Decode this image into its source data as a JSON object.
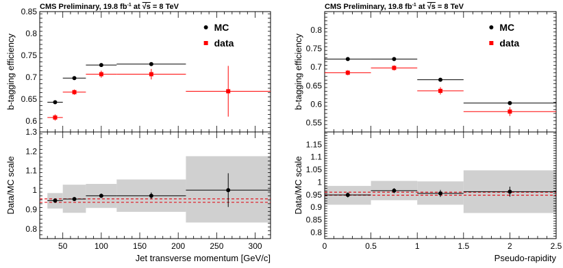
{
  "chart_data": [
    {
      "type": "scatter",
      "header": {
        "prefix": "CMS Preliminary, 19.8 fb",
        "sup": "-1",
        "mid": " at ",
        "sqrt": "√s",
        "suffix": " = 8 TeV"
      },
      "legend": [
        "MC",
        "data"
      ],
      "legend_placement": "top-right",
      "xlabel": "Jet transverse momentum [GeV/c]",
      "xlim": [
        20,
        320
      ],
      "xticks": [
        50,
        100,
        150,
        200,
        250,
        300
      ],
      "xtick_labels": [
        "50",
        "100",
        "150",
        "200",
        "250",
        "300"
      ],
      "top": {
        "ylabel": "b-tagging efficiency",
        "ylim": [
          0.575,
          0.85
        ],
        "yticks": [
          0.6,
          0.65,
          0.7,
          0.75,
          0.8,
          0.85
        ],
        "ytick_labels": [
          "0.6",
          "0.65",
          "0.7",
          "0.75",
          "0.8",
          "0.85"
        ],
        "series": [
          {
            "name": "MC",
            "color": "#000000",
            "marker": "circle",
            "points": [
              {
                "x": 40,
                "xlo": 30,
                "xhi": 50,
                "y": 0.643,
                "err": 0.002
              },
              {
                "x": 65,
                "xlo": 50,
                "xhi": 80,
                "y": 0.698,
                "err": 0.002
              },
              {
                "x": 100,
                "xlo": 80,
                "xhi": 120,
                "y": 0.728,
                "err": 0.002
              },
              {
                "x": 165,
                "xlo": 120,
                "xhi": 210,
                "y": 0.73,
                "err": 0.002
              },
              {
                "x": 265,
                "xlo": 210,
                "xhi": 320,
                "y": 0.668,
                "err": 0.003
              }
            ]
          },
          {
            "name": "data",
            "color": "#ff0000",
            "marker": "square",
            "points": [
              {
                "x": 40,
                "xlo": 30,
                "xhi": 50,
                "y": 0.608,
                "err": 0.007
              },
              {
                "x": 65,
                "xlo": 50,
                "xhi": 80,
                "y": 0.666,
                "err": 0.006
              },
              {
                "x": 100,
                "xlo": 80,
                "xhi": 120,
                "y": 0.707,
                "err": 0.008
              },
              {
                "x": 165,
                "xlo": 120,
                "xhi": 210,
                "y": 0.707,
                "err": 0.012
              },
              {
                "x": 265,
                "xlo": 210,
                "xhi": 320,
                "y": 0.668,
                "err": 0.058
              }
            ]
          }
        ]
      },
      "bottom": {
        "ylabel": "Data/MC scale",
        "ylim": [
          0.75,
          1.3
        ],
        "yticks": [
          0.8,
          0.9,
          1.0,
          1.1,
          1.2,
          1.3
        ],
        "ytick_labels": [
          "0.8",
          "0.9",
          "1",
          "1.1",
          "1.2",
          "1.3"
        ],
        "band_color": "#d0d0d0",
        "bands": [
          {
            "xlo": 30,
            "xhi": 50,
            "lo": 0.905,
            "hi": 0.985
          },
          {
            "xlo": 50,
            "xhi": 80,
            "lo": 0.883,
            "hi": 1.028
          },
          {
            "xlo": 80,
            "xhi": 120,
            "lo": 0.908,
            "hi": 1.032
          },
          {
            "xlo": 120,
            "xhi": 210,
            "lo": 0.888,
            "hi": 1.055
          },
          {
            "xlo": 210,
            "xhi": 320,
            "lo": 0.833,
            "hi": 1.175
          }
        ],
        "points": [
          {
            "x": 40,
            "xlo": 30,
            "xhi": 50,
            "y": 0.946,
            "err": 0.012
          },
          {
            "x": 65,
            "xlo": 50,
            "xhi": 80,
            "y": 0.954,
            "err": 0.009
          },
          {
            "x": 100,
            "xlo": 80,
            "xhi": 120,
            "y": 0.971,
            "err": 0.011
          },
          {
            "x": 165,
            "xlo": 120,
            "xhi": 210,
            "y": 0.971,
            "err": 0.017
          },
          {
            "x": 265,
            "xlo": 210,
            "xhi": 320,
            "y": 1.0,
            "err": 0.087
          }
        ],
        "ref_lines": [
          0.937,
          0.955
        ],
        "ref_color": "#e0141e"
      }
    },
    {
      "type": "scatter",
      "header": {
        "prefix": "CMS Preliminary, 19.8 fb",
        "sup": "-1",
        "mid": " at ",
        "sqrt": "√s",
        "suffix": " = 8 TeV"
      },
      "legend": [
        "MC",
        "data"
      ],
      "legend_placement": "top-right",
      "xlabel": "Pseudo-rapidity",
      "xlim": [
        0,
        2.5
      ],
      "xticks": [
        0,
        0.5,
        1,
        1.5,
        2,
        2.5
      ],
      "xtick_labels": [
        "0",
        "0.5",
        "1",
        "1.5",
        "2",
        "2.5"
      ],
      "top": {
        "ylabel": "b-tagging efficiency",
        "ylim": [
          0.525,
          0.85
        ],
        "yticks": [
          0.55,
          0.6,
          0.65,
          0.7,
          0.75,
          0.8
        ],
        "ytick_labels": [
          "0.55",
          "0.6",
          "0.65",
          "0.7",
          "0.75",
          "0.8"
        ],
        "series": [
          {
            "name": "MC",
            "color": "#000000",
            "marker": "circle",
            "points": [
              {
                "x": 0.25,
                "xlo": 0,
                "xhi": 0.5,
                "y": 0.722,
                "err": 0.002
              },
              {
                "x": 0.75,
                "xlo": 0.5,
                "xhi": 1.0,
                "y": 0.722,
                "err": 0.002
              },
              {
                "x": 1.25,
                "xlo": 1.0,
                "xhi": 1.5,
                "y": 0.666,
                "err": 0.002
              },
              {
                "x": 2.0,
                "xlo": 1.5,
                "xhi": 2.5,
                "y": 0.603,
                "err": 0.002
              }
            ]
          },
          {
            "name": "data",
            "color": "#ff0000",
            "marker": "square",
            "points": [
              {
                "x": 0.25,
                "xlo": 0,
                "xhi": 0.5,
                "y": 0.685,
                "err": 0.007
              },
              {
                "x": 0.75,
                "xlo": 0.5,
                "xhi": 1.0,
                "y": 0.698,
                "err": 0.007
              },
              {
                "x": 1.25,
                "xlo": 1.0,
                "xhi": 1.5,
                "y": 0.636,
                "err": 0.01
              },
              {
                "x": 2.0,
                "xlo": 1.5,
                "xhi": 2.5,
                "y": 0.58,
                "err": 0.012
              }
            ]
          }
        ]
      },
      "bottom": {
        "ylabel": "Data/MC scale",
        "ylim": [
          0.775,
          1.2
        ],
        "yticks": [
          0.8,
          0.85,
          0.9,
          0.95,
          1,
          1.05,
          1.1,
          1.15
        ],
        "ytick_labels": [
          "0.8",
          "0.85",
          "0.9",
          "0.95",
          "1",
          "1.05",
          "1.1",
          "1.15"
        ],
        "band_color": "#d0d0d0",
        "bands": [
          {
            "xlo": 0,
            "xhi": 0.5,
            "lo": 0.91,
            "hi": 0.985
          },
          {
            "xlo": 0.5,
            "xhi": 1.0,
            "lo": 0.928,
            "hi": 1.005
          },
          {
            "xlo": 1.0,
            "xhi": 1.5,
            "lo": 0.91,
            "hi": 1.003
          },
          {
            "xlo": 1.5,
            "xhi": 2.5,
            "lo": 0.877,
            "hi": 1.047
          }
        ],
        "points": [
          {
            "x": 0.25,
            "xlo": 0,
            "xhi": 0.5,
            "y": 0.949,
            "err": 0.01
          },
          {
            "x": 0.75,
            "xlo": 0.5,
            "xhi": 1.0,
            "y": 0.966,
            "err": 0.01
          },
          {
            "x": 1.25,
            "xlo": 1.0,
            "xhi": 1.5,
            "y": 0.955,
            "err": 0.014
          },
          {
            "x": 2.0,
            "xlo": 1.5,
            "xhi": 2.5,
            "y": 0.962,
            "err": 0.02
          }
        ],
        "ref_lines": [
          0.948,
          0.96
        ],
        "ref_color": "#e0141e"
      }
    }
  ]
}
